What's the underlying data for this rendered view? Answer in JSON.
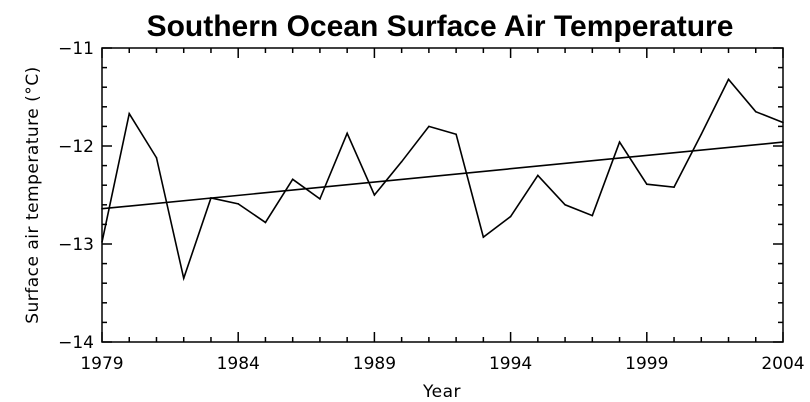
{
  "chart_data": {
    "type": "line",
    "title": "Southern Ocean Surface Air Temperature",
    "xlabel": "Year",
    "ylabel": "Surface air temperature (°C)",
    "xlim": [
      1979,
      2004
    ],
    "ylim": [
      -14,
      -11
    ],
    "x_ticks": [
      "1979",
      "1984",
      "1989",
      "1994",
      "1999",
      "2004"
    ],
    "y_ticks": [
      "−11",
      "−12",
      "−13",
      "−14"
    ],
    "x": [
      1979,
      1980,
      1981,
      1982,
      1983,
      1984,
      1985,
      1986,
      1987,
      1988,
      1989,
      1990,
      1991,
      1992,
      1993,
      1994,
      1995,
      1996,
      1997,
      1998,
      1999,
      2000,
      2001,
      2002,
      2003,
      2004
    ],
    "series": [
      {
        "values": [
          -12.98,
          -11.67,
          -12.12,
          -13.35,
          -12.53,
          -12.59,
          -12.78,
          -12.34,
          -12.54,
          -11.87,
          -12.5,
          -12.16,
          -11.8,
          -11.88,
          -12.93,
          -12.72,
          -12.3,
          -12.6,
          -12.71,
          -11.96,
          -12.39,
          -12.42,
          -11.88,
          -11.32,
          -11.65,
          -11.76
        ],
        "style": "line"
      },
      {
        "values": [
          -12.64,
          -11.96
        ],
        "x": [
          1979,
          2004
        ],
        "style": "trend"
      }
    ],
    "grid": false,
    "legend": "none"
  }
}
